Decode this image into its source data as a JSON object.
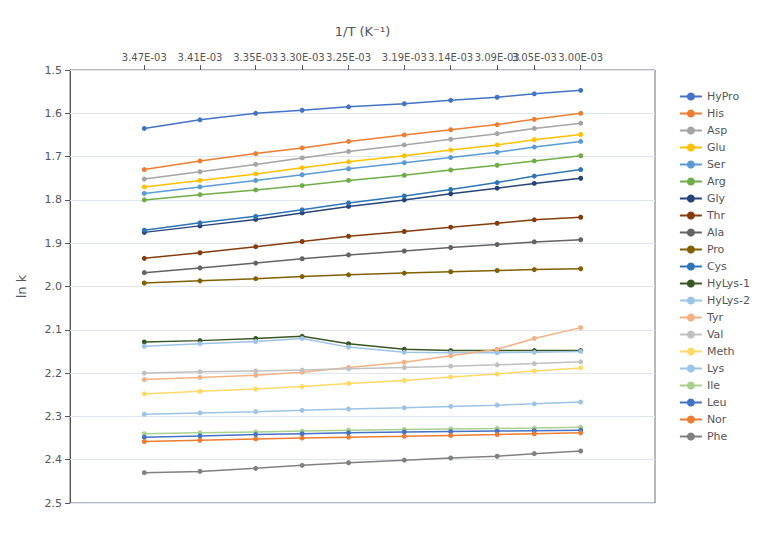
{
  "chart_data": {
    "type": "line",
    "xlabel": "1/T (K⁻¹)",
    "ylabel": "ln k",
    "x": [
      0.00347,
      0.00341,
      0.00335,
      0.0033,
      0.00325,
      0.00319,
      0.00314,
      0.00309,
      0.00305,
      0.003
    ],
    "xlim": [
      0.00355,
      0.00292
    ],
    "xticks": [
      {
        "value": 0.00347,
        "label": "3.47E-03"
      },
      {
        "value": 0.00341,
        "label": "3.41E-03"
      },
      {
        "value": 0.00335,
        "label": "3.35E-03"
      },
      {
        "value": 0.0033,
        "label": "3.30E-03"
      },
      {
        "value": 0.00325,
        "label": "3.25E-03"
      },
      {
        "value": 0.00319,
        "label": "3.19E-03"
      },
      {
        "value": 0.00314,
        "label": "3.14E-03"
      },
      {
        "value": 0.00309,
        "label": "3.09E-03"
      },
      {
        "value": 0.00305,
        "label": "3.05E-03"
      },
      {
        "value": 0.003,
        "label": "3.00E-03"
      }
    ],
    "ylim": [
      2.5,
      1.5
    ],
    "yticks": [
      1.5,
      1.6,
      1.7,
      1.8,
      1.9,
      {
        "value": 2,
        "label": "2.0"
      },
      2.1,
      2.2,
      2.3,
      2.4,
      2.5
    ],
    "grid": true,
    "legend": "right",
    "marker": "circle",
    "line_style": "solid",
    "series": [
      {
        "name": "HyPro",
        "color": "#4472C4",
        "values": [
          1.635,
          1.615,
          1.6,
          1.593,
          1.585,
          1.578,
          1.57,
          1.563,
          1.555,
          1.547
        ]
      },
      {
        "name": "His",
        "color": "#ED7D31",
        "values": [
          1.73,
          1.71,
          1.693,
          1.68,
          1.665,
          1.65,
          1.638,
          1.626,
          1.614,
          1.6
        ]
      },
      {
        "name": "Asp",
        "color": "#A5A5A5",
        "values": [
          1.752,
          1.735,
          1.718,
          1.703,
          1.688,
          1.673,
          1.66,
          1.647,
          1.635,
          1.623
        ]
      },
      {
        "name": "Glu",
        "color": "#FFC000",
        "values": [
          1.77,
          1.755,
          1.74,
          1.726,
          1.712,
          1.698,
          1.685,
          1.673,
          1.661,
          1.649
        ]
      },
      {
        "name": "Ser",
        "color": "#5B9BD5",
        "values": [
          1.785,
          1.77,
          1.755,
          1.742,
          1.728,
          1.714,
          1.702,
          1.69,
          1.678,
          1.665
        ]
      },
      {
        "name": "Arg",
        "color": "#70AD47",
        "values": [
          1.8,
          1.788,
          1.777,
          1.767,
          1.755,
          1.743,
          1.731,
          1.72,
          1.71,
          1.698
        ]
      },
      {
        "name": "Gly",
        "color": "#264478",
        "values": [
          1.875,
          1.86,
          1.845,
          1.83,
          1.815,
          1.8,
          1.786,
          1.773,
          1.762,
          1.75
        ]
      },
      {
        "name": "Thr",
        "color": "#843C0C",
        "values": [
          1.935,
          1.922,
          1.908,
          1.896,
          1.884,
          1.873,
          1.863,
          1.854,
          1.846,
          1.84
        ]
      },
      {
        "name": "Ala",
        "color": "#636363",
        "values": [
          1.968,
          1.957,
          1.946,
          1.936,
          1.927,
          1.918,
          1.91,
          1.903,
          1.897,
          1.892
        ]
      },
      {
        "name": "Pro",
        "color": "#806000",
        "values": [
          1.992,
          1.987,
          1.982,
          1.977,
          1.973,
          1.969,
          1.966,
          1.963,
          1.961,
          1.959
        ]
      },
      {
        "name": "Cys",
        "color": "#2E75B6",
        "values": [
          1.87,
          1.853,
          1.838,
          1.823,
          1.807,
          1.791,
          1.776,
          1.76,
          1.745,
          1.73
        ]
      },
      {
        "name": "HyLys-1",
        "color": "#375623",
        "values": [
          2.128,
          2.125,
          2.12,
          2.115,
          2.132,
          2.145,
          2.148,
          2.148,
          2.148,
          2.148
        ]
      },
      {
        "name": "HyLys-2",
        "color": "#9DC3E6",
        "values": [
          2.138,
          2.132,
          2.127,
          2.12,
          2.14,
          2.152,
          2.153,
          2.153,
          2.152,
          2.15
        ]
      },
      {
        "name": "Tyr",
        "color": "#F4B183",
        "values": [
          2.215,
          2.21,
          2.205,
          2.198,
          2.187,
          2.175,
          2.16,
          2.145,
          2.12,
          2.095
        ]
      },
      {
        "name": "Val",
        "color": "#C0C0C0",
        "values": [
          2.2,
          2.197,
          2.195,
          2.193,
          2.19,
          2.187,
          2.184,
          2.181,
          2.178,
          2.174
        ]
      },
      {
        "name": "Meth",
        "color": "#FFD966",
        "values": [
          2.248,
          2.242,
          2.237,
          2.231,
          2.224,
          2.217,
          2.209,
          2.202,
          2.195,
          2.188
        ]
      },
      {
        "name": "Lys",
        "color": "#9DC3E6",
        "values": [
          2.295,
          2.292,
          2.289,
          2.286,
          2.283,
          2.28,
          2.277,
          2.274,
          2.271,
          2.267
        ]
      },
      {
        "name": "Ile",
        "color": "#A9D18E",
        "values": [
          2.34,
          2.338,
          2.336,
          2.334,
          2.332,
          2.33,
          2.329,
          2.328,
          2.327,
          2.325
        ]
      },
      {
        "name": "Leu",
        "color": "#4472C4",
        "values": [
          2.348,
          2.345,
          2.342,
          2.34,
          2.338,
          2.336,
          2.335,
          2.334,
          2.333,
          2.332
        ]
      },
      {
        "name": "Nor",
        "color": "#ED7D31",
        "values": [
          2.358,
          2.355,
          2.352,
          2.35,
          2.348,
          2.346,
          2.344,
          2.342,
          2.34,
          2.338
        ]
      },
      {
        "name": "Phe",
        "color": "#808080",
        "values": [
          2.43,
          2.427,
          2.42,
          2.413,
          2.407,
          2.401,
          2.396,
          2.392,
          2.386,
          2.38
        ]
      }
    ]
  }
}
